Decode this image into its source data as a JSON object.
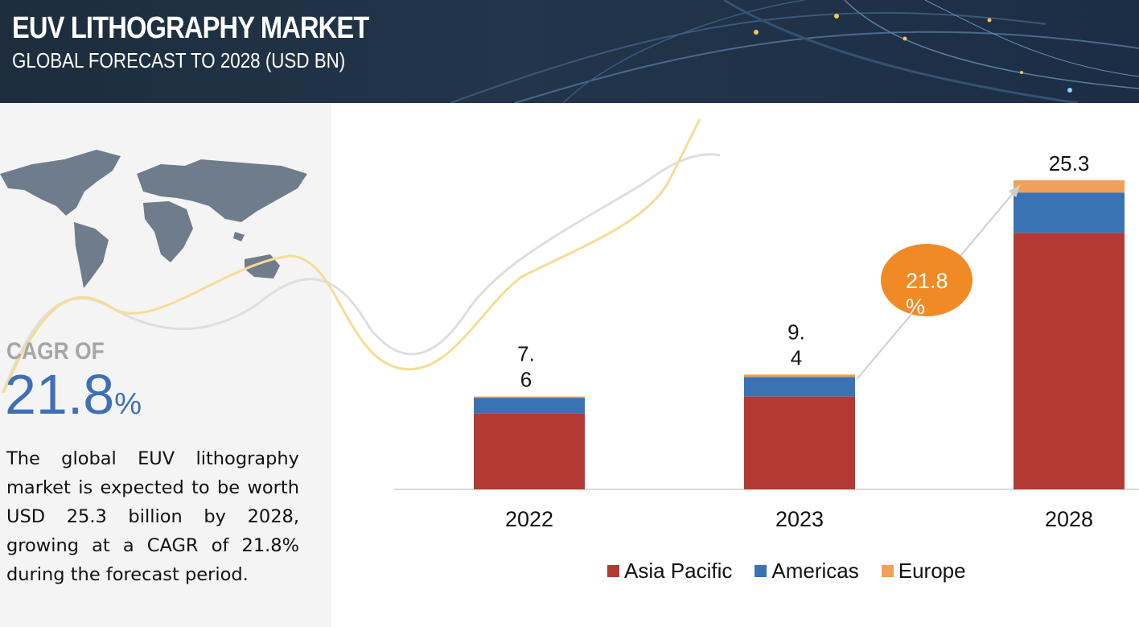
{
  "header": {
    "title": "EUV LITHOGRAPHY MARKET",
    "subtitle": "GLOBAL FORECAST TO 2028 (USD BN)"
  },
  "summary": {
    "cagr_label": "CAGR OF",
    "cagr_value": "21.8",
    "cagr_unit": "%",
    "description": "The global EUV lithography market is expected to be worth USD 25.3 billion by 2028, growing at a CAGR of 21.8% during the forecast period."
  },
  "colors": {
    "asia_pacific": "#b33a32",
    "americas": "#3a73b3",
    "europe": "#f0a058",
    "cagr_bubble": "#f08a24",
    "cagr_text": "#3f6fb7"
  },
  "chart_data": {
    "type": "bar",
    "stacked": true,
    "categories": [
      "2022",
      "2023",
      "2028"
    ],
    "series": [
      {
        "name": "Asia Pacific",
        "values": [
          6.2,
          7.6,
          21.0
        ]
      },
      {
        "name": "Americas",
        "values": [
          1.3,
          1.6,
          3.3
        ]
      },
      {
        "name": "Europe",
        "values": [
          0.1,
          0.2,
          1.0
        ]
      }
    ],
    "total_labels": [
      "7.\n6",
      "9.\n4",
      "25.3"
    ],
    "ylim": [
      0,
      25.3
    ],
    "grid": false,
    "legend": "bottom",
    "cagr_bubble": {
      "line1": "21.8",
      "line2": "%"
    }
  }
}
